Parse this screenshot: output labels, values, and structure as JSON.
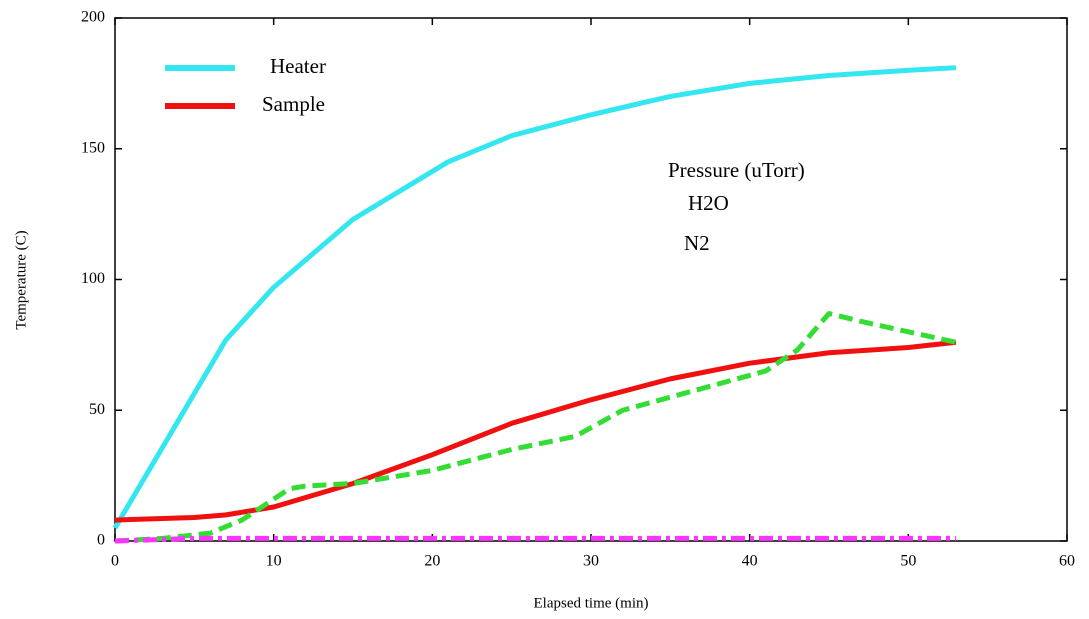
{
  "chart_data": {
    "type": "line",
    "xlabel": "Elapsed time (min)",
    "ylabel": "Temperature (C)",
    "annotation": "Pressure (uTorr)",
    "xlim": [
      0,
      60
    ],
    "xticks": [
      0,
      10,
      20,
      30,
      40,
      50,
      60
    ],
    "ylim": [
      0,
      200
    ],
    "yticks": [
      0,
      50,
      100,
      150,
      200
    ],
    "series": [
      {
        "name": "Heater",
        "color": "#33e6f0",
        "dash": "solid",
        "x": [
          0,
          7,
          10,
          15,
          21,
          25,
          30,
          35,
          40,
          45,
          50,
          53
        ],
        "values": [
          5,
          77,
          97,
          123,
          145,
          155,
          163,
          170,
          175,
          178,
          180,
          181
        ]
      },
      {
        "name": "Sample",
        "color": "#f01010",
        "dash": "solid",
        "x": [
          0,
          5,
          7,
          10,
          15,
          20,
          25,
          30,
          35,
          40,
          45,
          50,
          53
        ],
        "values": [
          8,
          9,
          10,
          13,
          22,
          33,
          45,
          54,
          62,
          68,
          72,
          74,
          76
        ]
      },
      {
        "name": "H2O",
        "color": "#33dd33",
        "dash": "dashed",
        "x": [
          0,
          3,
          6,
          8,
          11,
          12,
          15,
          20,
          25,
          29,
          32,
          35,
          38,
          41,
          43,
          45,
          47,
          50,
          53
        ],
        "values": [
          0,
          1,
          3,
          8,
          20,
          21,
          22,
          27,
          35,
          40,
          50,
          55,
          60,
          65,
          73,
          87,
          84,
          80,
          76
        ]
      },
      {
        "name": "N2",
        "color": "#ff33ff",
        "dash": "dashdot",
        "x": [
          0,
          5,
          10,
          15,
          20,
          25,
          30,
          35,
          40,
          45,
          50,
          53
        ],
        "values": [
          0,
          1,
          1,
          1,
          1,
          1,
          1,
          1,
          1,
          1,
          1,
          1
        ]
      }
    ]
  }
}
